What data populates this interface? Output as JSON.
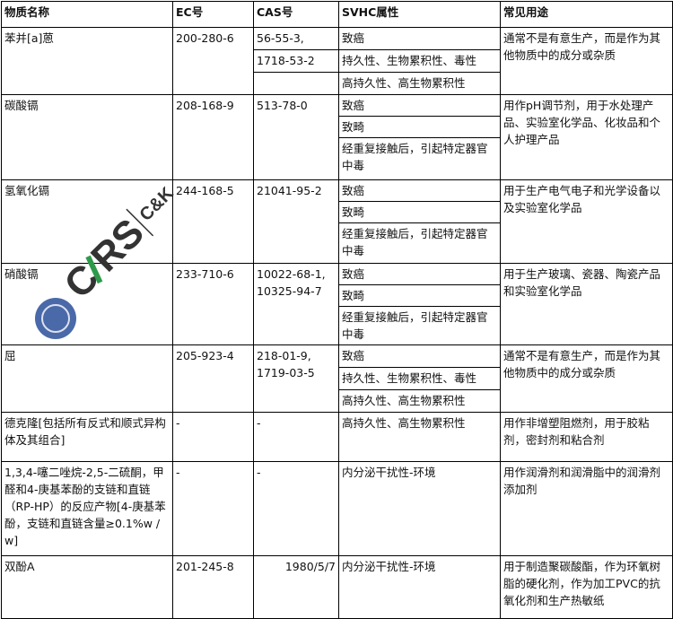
{
  "headers": [
    "物质名称",
    "EC号",
    "CAS号",
    "SVHC属性",
    "常见用途"
  ],
  "rows": [
    {
      "name": "苯并[a]蒽",
      "ec": "200-280-6",
      "cas": [
        "56-55-3,",
        "1718-53-2",
        ""
      ],
      "svhc": [
        "致癌",
        "持久性、生物累积性、毒性",
        "高持久性、高生物累积性"
      ],
      "use": "通常不是有意生产，而是作为其他物质中的成分或杂质"
    },
    {
      "name": "碳酸镉",
      "ec": "208-168-9",
      "cas": "513-78-0",
      "svhc": [
        "致癌",
        "致畸",
        "经重复接触后，引起特定器官中毒"
      ],
      "use": "用作pH调节剂，用于水处理产品、实验室化学品、化妆品和个人护理产品"
    },
    {
      "name": "氢氧化镉",
      "ec": "244-168-5",
      "cas": "21041-95-2",
      "svhc": [
        "致癌",
        "致畸",
        "经重复接触后，引起特定器官中毒"
      ],
      "use": "用于生产电气电子和光学设备以及实验室化学品"
    },
    {
      "name": "硝酸镉",
      "ec": "233-710-6",
      "cas": "10022-68-1, 10325-94-7",
      "svhc": [
        "致癌",
        "致畸",
        "经重复接触后，引起特定器官中毒"
      ],
      "use": "用于生产玻璃、瓷器、陶瓷产品和实验室化学品"
    },
    {
      "name": "屈",
      "ec": "205-923-4",
      "cas": "218-01-9, 1719-03-5",
      "svhc": [
        "致癌",
        "持久性、生物累积性、毒性",
        "高持久性、高生物累积性"
      ],
      "use": "通常不是有意生产，而是作为其他物质中的成分或杂质"
    },
    {
      "name": "德克隆[包括所有反式和顺式异构体及其组合]",
      "ec": "-",
      "cas": "-",
      "svhc": "高持久性、高生物累积性",
      "use": "用作非增塑阻燃剂，用于胶粘剂，密封剂和粘合剂"
    },
    {
      "name": "1,3,4-噻二唑烷-2,5-二硫酮，甲醛和4-庚基苯酚的支链和直链（RP-HP）的反应产物[4-庚基苯酚，支链和直链含量≥0.1%w / w]",
      "ec": "-",
      "cas": "-",
      "svhc": "内分泌干扰性-环境",
      "use": "用作润滑剂和润滑脂中的润滑剂添加剂"
    },
    {
      "name": "双酚A",
      "ec": "201-245-8",
      "cas": "1980/5/7",
      "svhc": "内分泌干扰性-环境",
      "use": "用于制造聚碳酸酯，作为环氧树脂的硬化剂，作为加工PVC的抗氧化剂和生产热敏纸"
    }
  ],
  "watermark": {
    "logo_text": "CIRS",
    "sub_text": "C&K",
    "colors": {
      "dark": "#333333",
      "green": "#2e9a4a",
      "blue": "#2a4f9a"
    }
  }
}
